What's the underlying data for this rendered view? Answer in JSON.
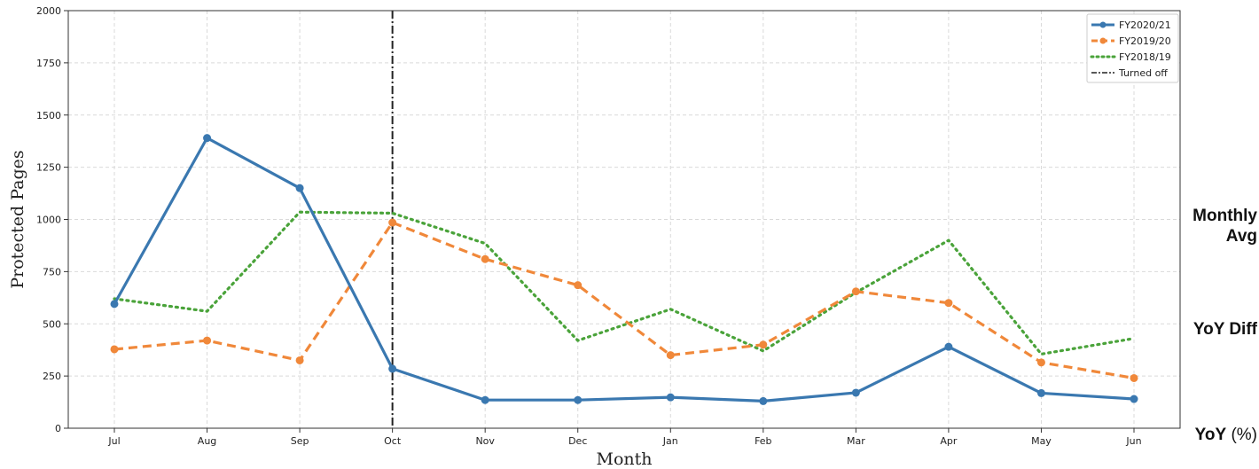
{
  "chart_data": {
    "type": "line",
    "xlabel": "Month",
    "ylabel": "Protected Pages",
    "categories": [
      "Jul",
      "Aug",
      "Sep",
      "Oct",
      "Nov",
      "Dec",
      "Jan",
      "Feb",
      "Mar",
      "Apr",
      "May",
      "Jun"
    ],
    "ylim": [
      0,
      2000
    ],
    "yticks": [
      "0",
      "250",
      "500",
      "750",
      "1000",
      "1250",
      "1500",
      "1750",
      "2000"
    ],
    "grid": true,
    "legend_position": "top-right",
    "series": [
      {
        "name": "FY2020/21",
        "color": "#3a78b0",
        "style": "solid-markers",
        "values": [
          595,
          1390,
          1150,
          285,
          135,
          135,
          148,
          130,
          170,
          390,
          168,
          140
        ]
      },
      {
        "name": "FY2019/20",
        "color": "#f0883a",
        "style": "dashed-markers",
        "values": [
          378,
          420,
          325,
          985,
          810,
          685,
          350,
          400,
          655,
          600,
          315,
          240
        ]
      },
      {
        "name": "FY2018/19",
        "color": "#4aa33a",
        "style": "dotted",
        "values": [
          620,
          560,
          1035,
          1030,
          885,
          420,
          570,
          370,
          650,
          900,
          355,
          430
        ]
      }
    ],
    "vline": {
      "name": "Turned off",
      "category": "Oct",
      "color": "#222222",
      "style": "dashdot"
    }
  },
  "side_labels": {
    "monthly_avg": "Monthly Avg",
    "yoy_diff": "YoY Diff",
    "yoy_bold": "YoY",
    "yoy_suffix": " (%)"
  }
}
